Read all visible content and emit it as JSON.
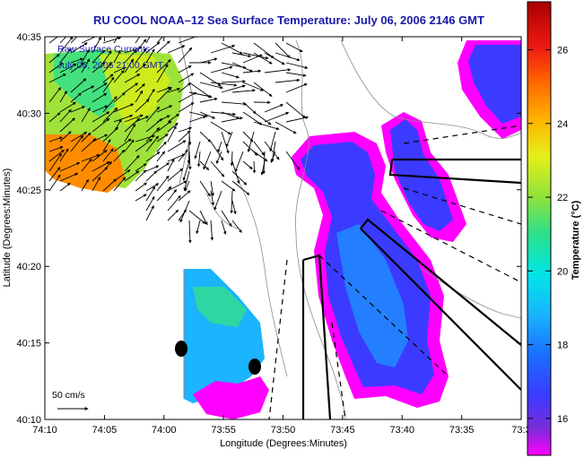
{
  "chart_data": {
    "type": "heatmap",
    "title": "RU COOL  NOAA–12  Sea Surface Temperature:  July 06, 2006 2146 GMT",
    "xlabel": "Longitude (Degrees:Minutes)",
    "ylabel": "Latitude (Degrees:Minutes)",
    "x_ticks": [
      "74:10",
      "74:05",
      "74:00",
      "73:55",
      "73:50",
      "73:45",
      "73:40",
      "73:35",
      "73:3"
    ],
    "x_tick_values": [
      -74.1667,
      -74.0833,
      -74.0,
      -73.9167,
      -73.8333,
      -73.75,
      -73.6667,
      -73.5833,
      -73.5
    ],
    "y_ticks": [
      "40:10",
      "40:15",
      "40:20",
      "40:25",
      "40:30",
      "40:35"
    ],
    "y_tick_values": [
      40.1667,
      40.25,
      40.3333,
      40.4167,
      40.5,
      40.5833
    ],
    "xlim": [
      -74.1667,
      -73.5
    ],
    "ylim": [
      40.1667,
      40.5833
    ],
    "overlay_labels": [
      "Raw Surface Currents",
      "July 06, 2006 21:00 GMT"
    ],
    "scale_arrow_label": "50 cm/s",
    "colorbar": {
      "label": "Temperature (°C)",
      "ticks": [
        16,
        18,
        20,
        22,
        24,
        26
      ],
      "range": [
        15,
        27.3
      ],
      "colors": [
        "#ff00ff",
        "#5b3bd9",
        "#1c4dff",
        "#1aa6ff",
        "#00e5e5",
        "#33e08a",
        "#9fe23a",
        "#f2ef1a",
        "#ffb300",
        "#ff5a00",
        "#ee1a12",
        "#a80000"
      ]
    },
    "temperature_regions": [
      {
        "name": "offshore-cold-plume-west",
        "temperature": 17.0
      },
      {
        "name": "offshore-cold-plume-east",
        "temperature": 17.0
      },
      {
        "name": "coastal-nj-water",
        "temperature": 18.6
      },
      {
        "name": "northeast-patch",
        "temperature": 17.5
      },
      {
        "name": "bay-warm-water",
        "temperature": 24.0
      },
      {
        "name": "bay-cool-water",
        "temperature": 19.5
      }
    ],
    "markers": [
      {
        "lon": -73.98,
        "lat": 40.245
      },
      {
        "lon": -73.935,
        "lat": 40.225
      }
    ]
  },
  "colors": {
    "title": "#1a1aa8",
    "axis": "#000000",
    "land": "#ffffff",
    "contour": "#8c8c8c",
    "arrow": "#000000",
    "marker": "#000000"
  }
}
